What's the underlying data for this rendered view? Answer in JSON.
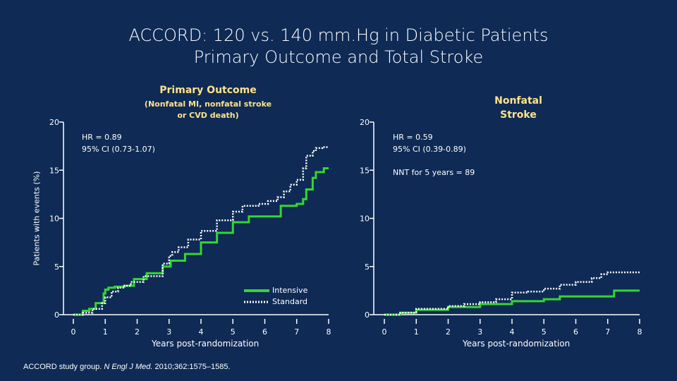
{
  "slide": {
    "title_line1": "ACCORD: 120 vs. 140 mm.Hg in Diabetic Patients",
    "title_line2": "Primary Outcome and Total Stroke",
    "citation_prefix": "ACCORD study group. ",
    "citation_journal": "N Engl J Med.",
    "citation_suffix": " 2010;362:1575–1585.",
    "y_axis_label": "Patients with events (%)"
  },
  "colors": {
    "background": "#0e2a55",
    "intensive": "#35d62f",
    "standard": "#ffffff",
    "header": "#ffe38a"
  },
  "chart_data": [
    {
      "type": "line",
      "title": "Primary Outcome",
      "subtitle_line1": "(Nonfatal MI, nonfatal stroke",
      "subtitle_line2": "or CVD death)",
      "xlabel": "Years post-randomization",
      "ylabel": "Patients with events (%)",
      "xlim": [
        0,
        8
      ],
      "ylim": [
        0,
        20
      ],
      "xticks": [
        0,
        1,
        2,
        3,
        4,
        5,
        6,
        7,
        8
      ],
      "yticks": [
        0,
        5,
        10,
        15,
        20
      ],
      "annotations": {
        "hr": "HR = 0.89",
        "ci": "95% CI (0.73-1.07)"
      },
      "legend": {
        "intensive": "Intensive",
        "standard": "Standard"
      },
      "series": [
        {
          "name": "Intensive",
          "style": "solid",
          "points": [
            [
              0,
              0
            ],
            [
              0.3,
              0.4
            ],
            [
              0.5,
              0.6
            ],
            [
              0.7,
              1.2
            ],
            [
              0.95,
              2.2
            ],
            [
              1.0,
              2.6
            ],
            [
              1.1,
              2.8
            ],
            [
              1.3,
              2.9
            ],
            [
              1.6,
              3.0
            ],
            [
              1.9,
              3.7
            ],
            [
              2.3,
              4.3
            ],
            [
              2.8,
              5.0
            ],
            [
              3.05,
              5.6
            ],
            [
              3.5,
              6.3
            ],
            [
              4.0,
              7.5
            ],
            [
              4.5,
              8.5
            ],
            [
              5.0,
              9.6
            ],
            [
              5.5,
              10.2
            ],
            [
              6.0,
              10.2
            ],
            [
              6.5,
              11.3
            ],
            [
              7.0,
              11.5
            ],
            [
              7.2,
              12.0
            ],
            [
              7.3,
              13.0
            ],
            [
              7.5,
              14.2
            ],
            [
              7.6,
              14.8
            ],
            [
              7.85,
              15.2
            ],
            [
              8.0,
              15.2
            ]
          ]
        },
        {
          "name": "Standard",
          "style": "dotted",
          "points": [
            [
              0,
              0
            ],
            [
              0.3,
              0.2
            ],
            [
              0.6,
              0.6
            ],
            [
              0.9,
              1.2
            ],
            [
              1.0,
              1.8
            ],
            [
              1.2,
              2.4
            ],
            [
              1.4,
              2.8
            ],
            [
              1.6,
              3.0
            ],
            [
              1.8,
              3.4
            ],
            [
              2.2,
              4.0
            ],
            [
              2.8,
              5.3
            ],
            [
              3.0,
              6.1
            ],
            [
              3.1,
              6.5
            ],
            [
              3.3,
              7.0
            ],
            [
              3.6,
              7.8
            ],
            [
              4.0,
              8.7
            ],
            [
              4.5,
              9.8
            ],
            [
              5.0,
              10.7
            ],
            [
              5.3,
              11.3
            ],
            [
              5.8,
              11.5
            ],
            [
              6.1,
              11.8
            ],
            [
              6.4,
              12.2
            ],
            [
              6.6,
              12.8
            ],
            [
              6.8,
              13.5
            ],
            [
              7.0,
              14.0
            ],
            [
              7.2,
              15.2
            ],
            [
              7.3,
              16.5
            ],
            [
              7.5,
              17.0
            ],
            [
              7.6,
              17.3
            ],
            [
              7.8,
              17.4
            ],
            [
              8.0,
              17.4
            ]
          ]
        }
      ]
    },
    {
      "type": "line",
      "title": "Nonfatal",
      "title_line2": "Stroke",
      "xlabel": "Years post-randomization",
      "xlim": [
        0,
        8
      ],
      "ylim": [
        0,
        20
      ],
      "xticks": [
        0,
        1,
        2,
        3,
        4,
        5,
        6,
        7,
        8
      ],
      "yticks": [
        0,
        5,
        10,
        15,
        20
      ],
      "annotations": {
        "hr": "HR = 0.59",
        "ci": "95% CI (0.39-0.89)",
        "nnt": "NNT for 5 years = 89"
      },
      "series": [
        {
          "name": "Intensive",
          "style": "solid",
          "points": [
            [
              0,
              0
            ],
            [
              0.5,
              0.2
            ],
            [
              1.0,
              0.5
            ],
            [
              2.0,
              0.8
            ],
            [
              3.0,
              1.1
            ],
            [
              4.0,
              1.4
            ],
            [
              5.0,
              1.6
            ],
            [
              5.5,
              1.9
            ],
            [
              6.0,
              1.9
            ],
            [
              7.0,
              1.9
            ],
            [
              7.2,
              2.5
            ],
            [
              8.0,
              2.5
            ]
          ]
        },
        {
          "name": "Standard",
          "style": "dotted",
          "points": [
            [
              0,
              0
            ],
            [
              0.5,
              0.2
            ],
            [
              1.0,
              0.6
            ],
            [
              2.0,
              0.9
            ],
            [
              2.5,
              1.1
            ],
            [
              3.0,
              1.3
            ],
            [
              3.5,
              1.6
            ],
            [
              4.0,
              2.3
            ],
            [
              4.5,
              2.4
            ],
            [
              5.0,
              2.7
            ],
            [
              5.5,
              3.1
            ],
            [
              6.0,
              3.4
            ],
            [
              6.5,
              3.8
            ],
            [
              6.8,
              4.2
            ],
            [
              7.0,
              4.4
            ],
            [
              8.0,
              4.4
            ]
          ]
        }
      ]
    }
  ]
}
